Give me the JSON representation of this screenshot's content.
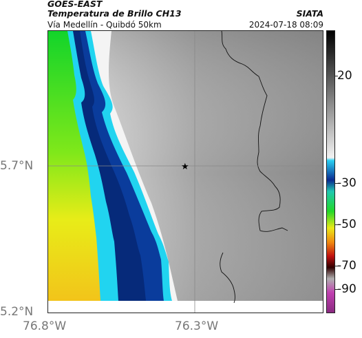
{
  "header": {
    "line1": "GOES-EAST",
    "line2": "Temperatura de Brillo CH13",
    "line3": "Vía Medellín - Quibdó 50km",
    "org": "SIATA",
    "datetime": "2024-07-18 08:09"
  },
  "axes": {
    "lat_labels": [
      "5.7°N",
      "5.2°N"
    ],
    "lon_labels": [
      "76.8°W",
      "76.3°W"
    ]
  },
  "colorbar": {
    "ticks": [
      "20",
      "-30",
      "-50",
      "-70",
      "-90"
    ]
  },
  "marker": {
    "type": "star",
    "color": "#000000"
  },
  "colors": {
    "cold_magenta": "#b63cb0",
    "dark_blue": "#062a90",
    "cyan": "#21d4f0",
    "green": "#22d82a",
    "yellow": "#f0e81a",
    "land_gray": "#8e8e8e"
  }
}
